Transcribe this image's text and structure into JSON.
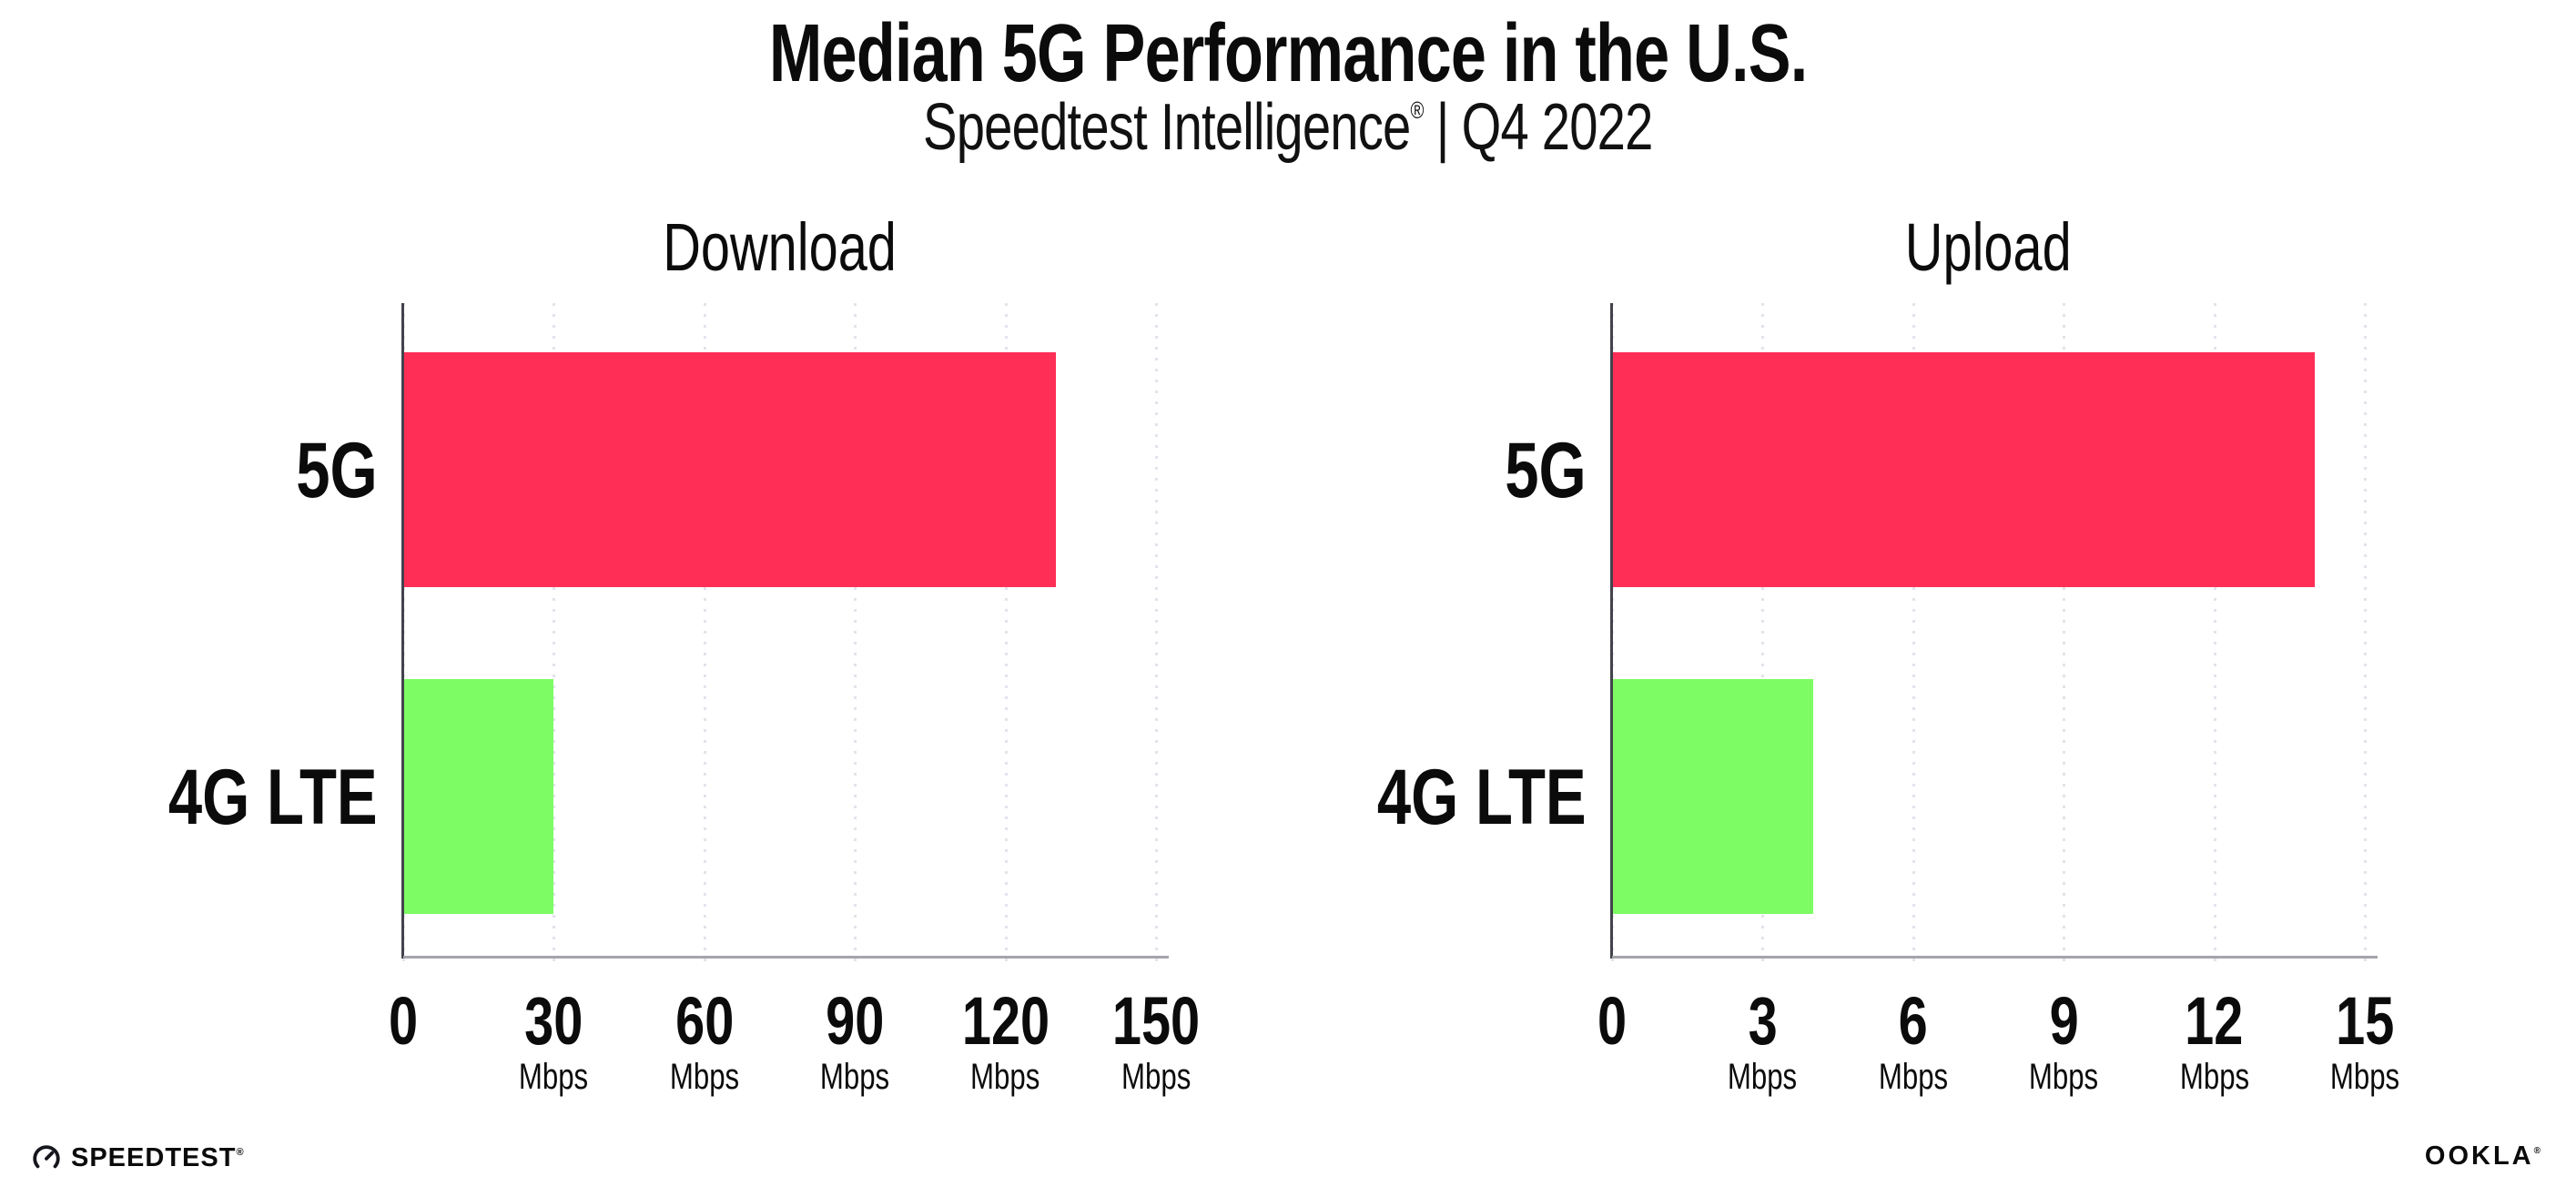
{
  "header": {
    "title": "Median 5G Performance in the U.S.",
    "subtitle": {
      "brand": "Speedtest Intelligence",
      "registered_mark": "®",
      "divider": "|",
      "period": "Q4 2022"
    }
  },
  "colors": {
    "bar_5g": "#ff2e56",
    "bar_4g_lte": "#7dfc64",
    "gridline": "#e3e3ec",
    "x_axis_line": "#a4a4ac",
    "y_axis_line": "#43434d",
    "text": "#0b0b0b"
  },
  "chart_data": [
    {
      "type": "bar",
      "orientation": "horizontal",
      "title": "Download",
      "categories": [
        "5G",
        "4G LTE"
      ],
      "values": [
        130,
        30
      ],
      "unit": "Mbps",
      "xlim": [
        0,
        150
      ],
      "xticks": [
        0,
        30,
        60,
        90,
        120,
        150
      ],
      "tick_unit_label": "Mbps",
      "grid": "dotted-vertical",
      "legend": "none",
      "bar_colors": [
        "#ff2e56",
        "#7dfc64"
      ]
    },
    {
      "type": "bar",
      "orientation": "horizontal",
      "title": "Upload",
      "categories": [
        "5G",
        "4G LTE"
      ],
      "values": [
        14,
        4
      ],
      "unit": "Mbps",
      "xlim": [
        0,
        15
      ],
      "xticks": [
        0,
        3,
        6,
        9,
        12,
        15
      ],
      "tick_unit_label": "Mbps",
      "grid": "dotted-vertical",
      "legend": "none",
      "bar_colors": [
        "#ff2e56",
        "#7dfc64"
      ]
    }
  ],
  "footer": {
    "speedtest_label": "SPEEDTEST",
    "speedtest_mark": "®",
    "ookla_label": "OOKLA",
    "ookla_mark": "®"
  }
}
